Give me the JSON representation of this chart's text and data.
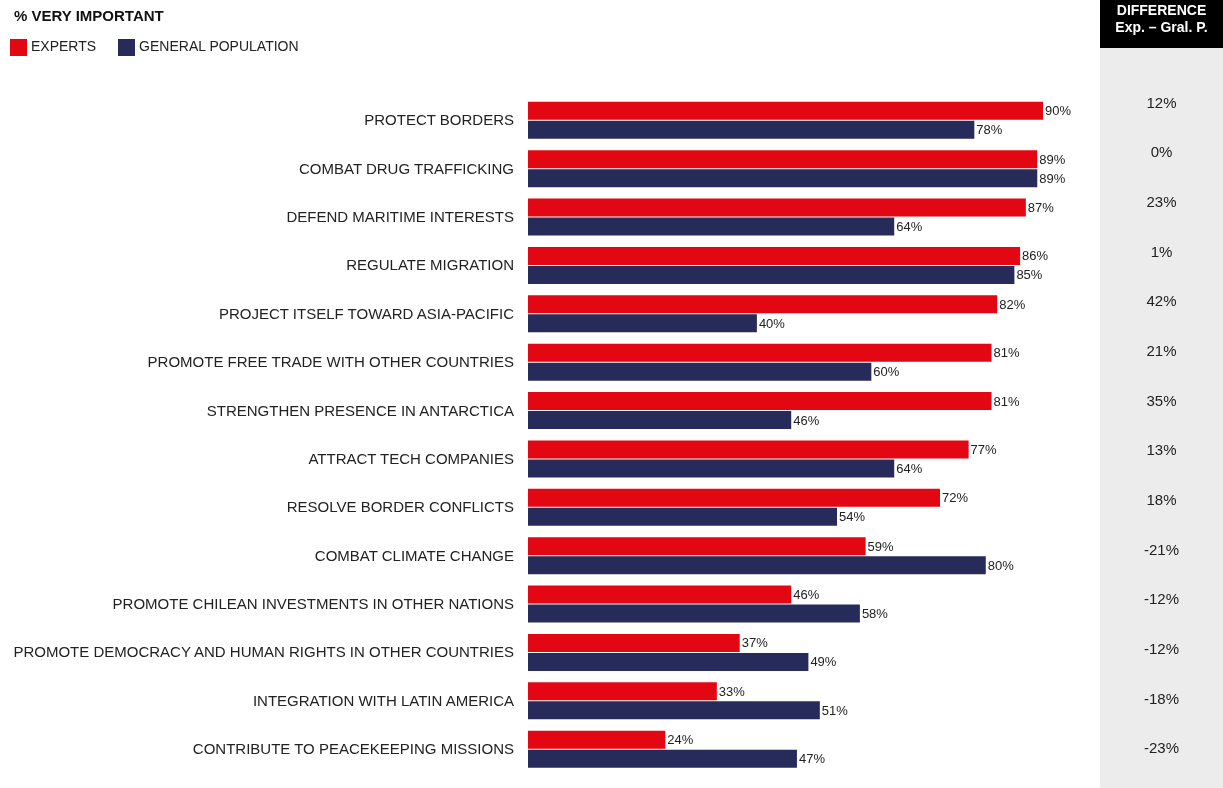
{
  "chart_data": {
    "type": "bar",
    "orientation": "horizontal",
    "title": "% VERY IMPORTANT",
    "legend": "top left",
    "categories": [
      "PROTECT BORDERS",
      "COMBAT DRUG TRAFFICKING",
      "DEFEND MARITIME INTERESTS",
      "REGULATE MIGRATION",
      "PROJECT ITSELF TOWARD ASIA-PACIFIC",
      "PROMOTE FREE TRADE WITH OTHER COUNTRIES",
      "STRENGTHEN PRESENCE IN ANTARCTICA",
      "ATTRACT TECH COMPANIES",
      "RESOLVE BORDER CONFLICTS",
      "COMBAT CLIMATE CHANGE",
      "PROMOTE CHILEAN INVESTMENTS IN OTHER NATIONS",
      "PROMOTE DEMOCRACY AND HUMAN RIGHTS IN OTHER COUNTRIES",
      "INTEGRATION WITH LATIN AMERICA",
      "CONTRIBUTE TO PEACEKEEPING MISSIONS"
    ],
    "series": [
      {
        "name": "EXPERTS",
        "color": "#e30613",
        "values": [
          90,
          89,
          87,
          86,
          82,
          81,
          81,
          77,
          72,
          59,
          46,
          37,
          33,
          24
        ],
        "value_labels": [
          "90%",
          "89%",
          "87%",
          "86%",
          "82%",
          "81%",
          "81%",
          "77%",
          "72%",
          "59%",
          "46%",
          "37%",
          "33%",
          "24%"
        ]
      },
      {
        "name": "GENERAL POPULATION",
        "color": "#272b59",
        "values": [
          78,
          89,
          64,
          85,
          40,
          60,
          46,
          64,
          54,
          80,
          58,
          49,
          51,
          47
        ],
        "value_labels": [
          "78%",
          "89%",
          "64%",
          "85%",
          "40%",
          "60%",
          "46%",
          "64%",
          "54%",
          "80%",
          "58%",
          "49%",
          "51%",
          "47%"
        ]
      }
    ],
    "annotations": [
      "DIFFERENCE",
      "Exp. – Gral. P.",
      "12%",
      "0%",
      "23%",
      "1%",
      "42%",
      "21%",
      "35%",
      "13%",
      "18%",
      "-21%",
      "-12%",
      "-12%",
      "-18%",
      "-23%"
    ]
  }
}
